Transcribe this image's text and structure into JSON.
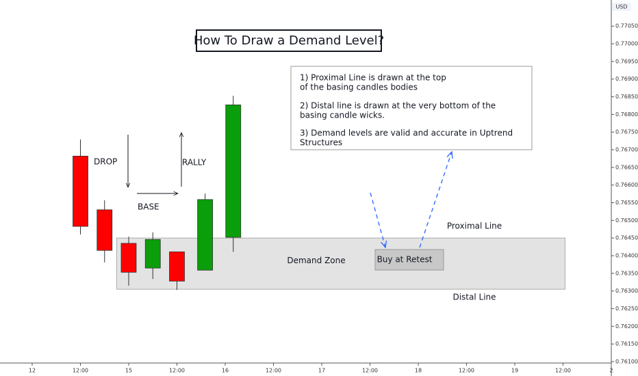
{
  "chart_data": {
    "type": "candlestick",
    "title": "How To Draw a Demand Level?",
    "currency": "USD",
    "x": [
      12,
      18,
      24,
      30,
      36,
      43,
      50
    ],
    "open": [
      0.76682,
      0.7653,
      0.76435,
      0.76365,
      0.76411,
      0.76359,
      0.76452
    ],
    "high": [
      0.76729,
      0.76557,
      0.76454,
      0.76466,
      0.76411,
      0.76576,
      0.76853
    ],
    "low": [
      0.7646,
      0.76381,
      0.76315,
      0.76334,
      0.76303,
      0.76359,
      0.76411
    ],
    "close": [
      0.76483,
      0.76415,
      0.76353,
      0.76446,
      0.76328,
      0.76559,
      0.76827
    ],
    "up_color": "#0a9e0a",
    "down_color": "#ff0000",
    "xlim": [
      -8,
      144
    ],
    "xticks": [
      {
        "value": 0,
        "label": "12"
      },
      {
        "value": 12,
        "label": "12:00"
      },
      {
        "value": 24,
        "label": "15"
      },
      {
        "value": 36,
        "label": "12:00"
      },
      {
        "value": 48,
        "label": "16"
      },
      {
        "value": 60,
        "label": "12:00"
      },
      {
        "value": 72,
        "label": "17"
      },
      {
        "value": 84,
        "label": "12:00"
      },
      {
        "value": 96,
        "label": "18"
      },
      {
        "value": 108,
        "label": "12:00"
      },
      {
        "value": 120,
        "label": "19"
      },
      {
        "value": 132,
        "label": "12:00"
      },
      {
        "value": 144,
        "label": "2"
      }
    ],
    "ylim": [
      0.761,
      0.77124
    ],
    "yticks": [
      {
        "value": 0.761,
        "label": "0.76100"
      },
      {
        "value": 0.7615,
        "label": "0.76150"
      },
      {
        "value": 0.762,
        "label": "0.76200"
      },
      {
        "value": 0.7625,
        "label": "0.76250"
      },
      {
        "value": 0.763,
        "label": "0.76300"
      },
      {
        "value": 0.7635,
        "label": "0.76350"
      },
      {
        "value": 0.764,
        "label": "0.76400"
      },
      {
        "value": 0.7645,
        "label": "0.76450"
      },
      {
        "value": 0.765,
        "label": "0.76500"
      },
      {
        "value": 0.7655,
        "label": "0.76550"
      },
      {
        "value": 0.766,
        "label": "0.76600"
      },
      {
        "value": 0.7665,
        "label": "0.76650"
      },
      {
        "value": 0.767,
        "label": "0.76700"
      },
      {
        "value": 0.7675,
        "label": "0.76750"
      },
      {
        "value": 0.768,
        "label": "0.76800"
      },
      {
        "value": 0.7685,
        "label": "0.76850"
      },
      {
        "value": 0.769,
        "label": "0.76900"
      },
      {
        "value": 0.7695,
        "label": "0.76950"
      },
      {
        "value": 0.77,
        "label": "0.77000"
      },
      {
        "value": 0.7705,
        "label": "0.77050"
      }
    ],
    "zone": {
      "label": "Demand Zone",
      "top": 0.7645,
      "bottom": 0.76305,
      "x": [
        21,
        132.5
      ],
      "proximal_label": "Proximal Line",
      "distal_label": "Distal Line"
    },
    "entry_label": "Buy at Retest",
    "phase_labels": {
      "drop": "DROP",
      "base": "BASE",
      "rally": "RALLY"
    },
    "notes": [
      [
        "1) Proximal Line is drawn at the top",
        "of the basing candles bodies"
      ],
      [
        "2) Distal line is drawn at the very bottom of the",
        "basing candle wicks."
      ],
      [
        "3) Demand levels are valid and accurate in Uptrend",
        "Structures"
      ]
    ]
  }
}
